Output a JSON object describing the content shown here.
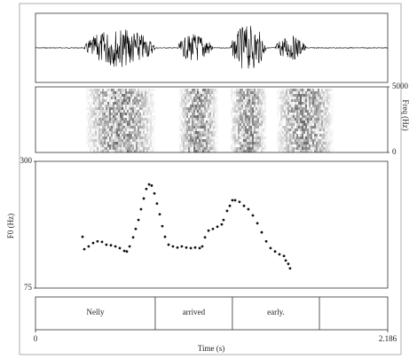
{
  "chart_data": {
    "type": "scatter",
    "y_label": "F0 (Hz)",
    "x_label": "Time (s)",
    "color": "#111111",
    "xlim": [
      0,
      2.186
    ],
    "xticks": [
      0,
      2.186
    ],
    "ylim": [
      75,
      300
    ],
    "yticks": [
      300,
      75
    ],
    "x": [
      0.292,
      0.303,
      0.33,
      0.358,
      0.385,
      0.413,
      0.44,
      0.468,
      0.496,
      0.523,
      0.551,
      0.567,
      0.584,
      0.606,
      0.622,
      0.639,
      0.655,
      0.672,
      0.688,
      0.705,
      0.721,
      0.738,
      0.754,
      0.771,
      0.787,
      0.804,
      0.826,
      0.853,
      0.881,
      0.908,
      0.936,
      0.964,
      0.991,
      1.019,
      1.035,
      1.052,
      1.074,
      1.101,
      1.129,
      1.156,
      1.167,
      1.189,
      1.206,
      1.222,
      1.239,
      1.266,
      1.294,
      1.321,
      1.349,
      1.377,
      1.404,
      1.432,
      1.459,
      1.487,
      1.514,
      1.542,
      1.553,
      1.569,
      1.58
    ],
    "values": [
      166,
      144,
      149,
      155,
      158,
      157,
      152,
      151,
      149,
      146,
      141,
      140,
      149,
      165,
      180,
      196,
      215,
      234,
      251,
      259,
      257,
      243,
      225,
      206,
      185,
      166,
      152,
      149,
      147,
      149,
      147,
      146,
      147,
      146,
      149,
      165,
      177,
      180,
      184,
      188,
      196,
      212,
      221,
      231,
      231,
      228,
      221,
      215,
      204,
      190,
      174,
      158,
      146,
      140,
      135,
      132,
      124,
      118,
      110
    ]
  },
  "spectrogram": {
    "y_label": "Freq (Hz)",
    "ylim": [
      0,
      5000
    ],
    "yticks": [
      5000,
      0
    ]
  },
  "textgrid": {
    "boundaries": [
      0.743,
      1.222,
      1.762
    ],
    "labels": [
      "Nelly",
      "arrived",
      "early."
    ]
  }
}
